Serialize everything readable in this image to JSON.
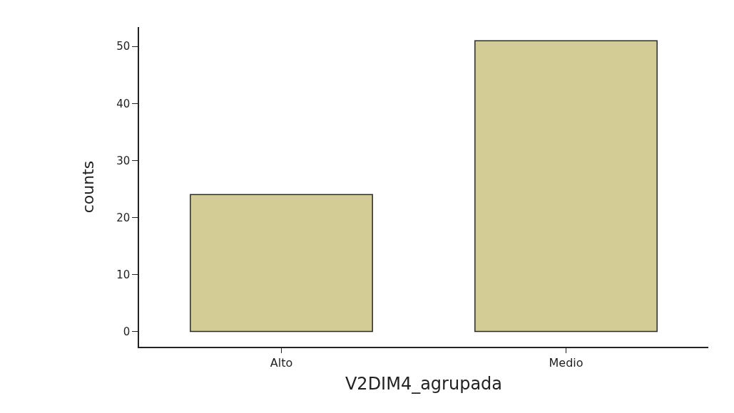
{
  "chart_data": {
    "type": "bar",
    "xlabel": "V2DIM4_agrupada",
    "ylabel": "counts",
    "categories": [
      "Alto",
      "Medio"
    ],
    "values": [
      24,
      51
    ],
    "color": "#d3cd95",
    "ylim": [
      -2.7,
      53.4
    ],
    "yticks": [
      0,
      10,
      20,
      30,
      40,
      50
    ],
    "grid": false
  }
}
